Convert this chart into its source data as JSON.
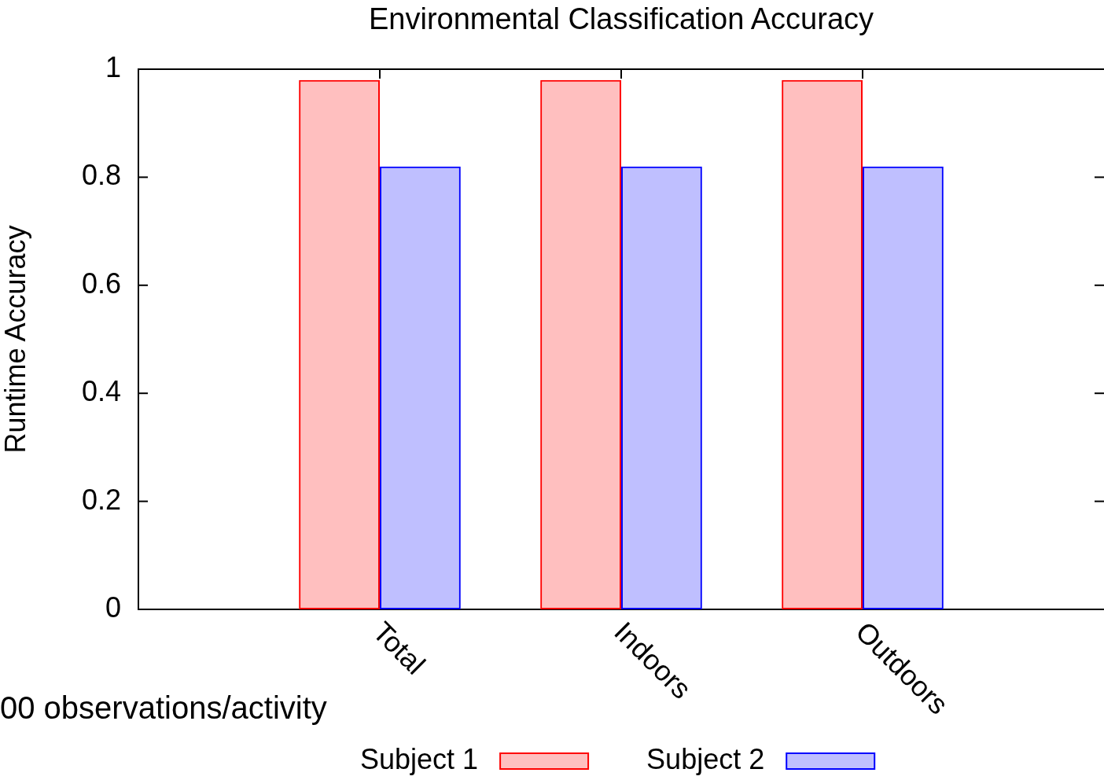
{
  "chart_data": {
    "type": "bar",
    "title": "Environmental Classification Accuracy",
    "ylabel": "Runtime Accuracy",
    "categories": [
      null,
      "Total",
      "Indoors",
      "Outdoors",
      null
    ],
    "series": [
      {
        "name": "Subject 1",
        "color": "#ff0000",
        "values": [
          null,
          0.98,
          0.98,
          0.98,
          null
        ]
      },
      {
        "name": "Subject 2",
        "color": "#0000ff",
        "values": [
          null,
          0.82,
          0.82,
          0.82,
          null
        ]
      }
    ],
    "ylim": [
      0,
      1
    ],
    "yticks": [
      0,
      0.2,
      0.4,
      0.6,
      0.8,
      1
    ],
    "grid": false,
    "legend": "bottom",
    "annotations": [
      "00 observations/activity"
    ]
  }
}
